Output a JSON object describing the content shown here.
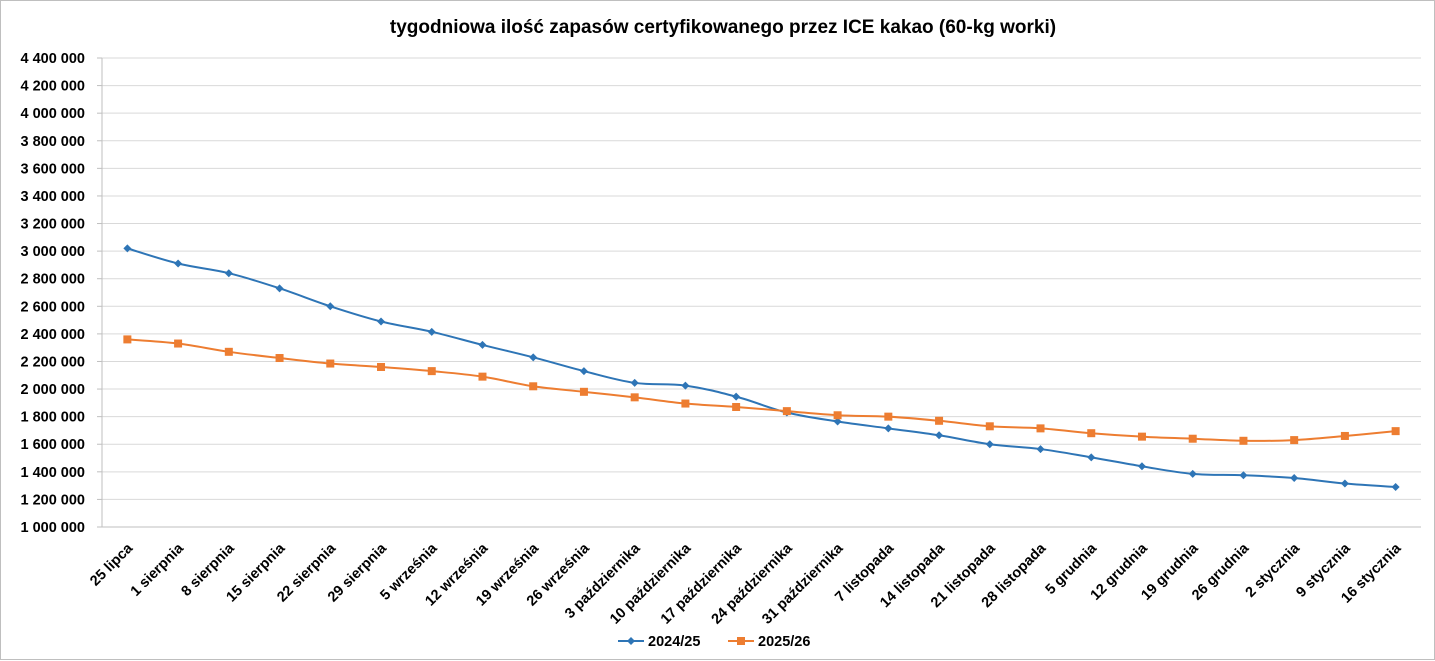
{
  "chart_data": {
    "type": "line",
    "title": "tygodniowa ilość zapasów certyfikowanego przez ICE kakao (60-kg worki)",
    "xlabel": "",
    "ylabel": "",
    "ylim": [
      1000000,
      4400000
    ],
    "yticks": [
      1000000,
      1200000,
      1400000,
      1600000,
      1800000,
      2000000,
      2200000,
      2400000,
      2600000,
      2800000,
      3000000,
      3200000,
      3400000,
      3600000,
      3800000,
      4000000,
      4200000,
      4400000
    ],
    "ytick_labels": [
      "1 000 000",
      "1 200 000",
      "1 400 000",
      "1 600 000",
      "1 800 000",
      "2 000 000",
      "2 200 000",
      "2 400 000",
      "2 600 000",
      "2 800 000",
      "3 000 000",
      "3 200 000",
      "3 400 000",
      "3 600 000",
      "3 800 000",
      "4 000 000",
      "4 200 000",
      "4 400 000"
    ],
    "grid": true,
    "legend_position": "bottom",
    "categories": [
      "25 lipca",
      "1 sierpnia",
      "8 sierpnia",
      "15 sierpnia",
      "22 sierpnia",
      "29 sierpnia",
      "5 września",
      "12 września",
      "19 września",
      "26 września",
      "3 października",
      "10 października",
      "17 października",
      "24 października",
      "31 października",
      "7 listopada",
      "14 listopada",
      "21 listopada",
      "28 listopada",
      "5 grudnia",
      "12 grudnia",
      "19 grudnia",
      "26 grudnia",
      "2 stycznia",
      "9 stycznia",
      "16 stycznia"
    ],
    "series": [
      {
        "name": "2024/25",
        "color": "#2e75b6",
        "marker": "diamond",
        "values": [
          3020000,
          2910000,
          2840000,
          2730000,
          2600000,
          2490000,
          2415000,
          2320000,
          2230000,
          2130000,
          2045000,
          2025000,
          1945000,
          1830000,
          1765000,
          1715000,
          1665000,
          1600000,
          1565000,
          1505000,
          1440000,
          1385000,
          1375000,
          1355000,
          1315000,
          1290000
        ]
      },
      {
        "name": "2025/26",
        "color": "#ed7d31",
        "marker": "square",
        "values": [
          2360000,
          2330000,
          2270000,
          2225000,
          2185000,
          2160000,
          2130000,
          2090000,
          2020000,
          1980000,
          1940000,
          1895000,
          1870000,
          1840000,
          1810000,
          1800000,
          1770000,
          1730000,
          1715000,
          1680000,
          1655000,
          1640000,
          1625000,
          1630000,
          1660000,
          1695000
        ]
      }
    ]
  }
}
